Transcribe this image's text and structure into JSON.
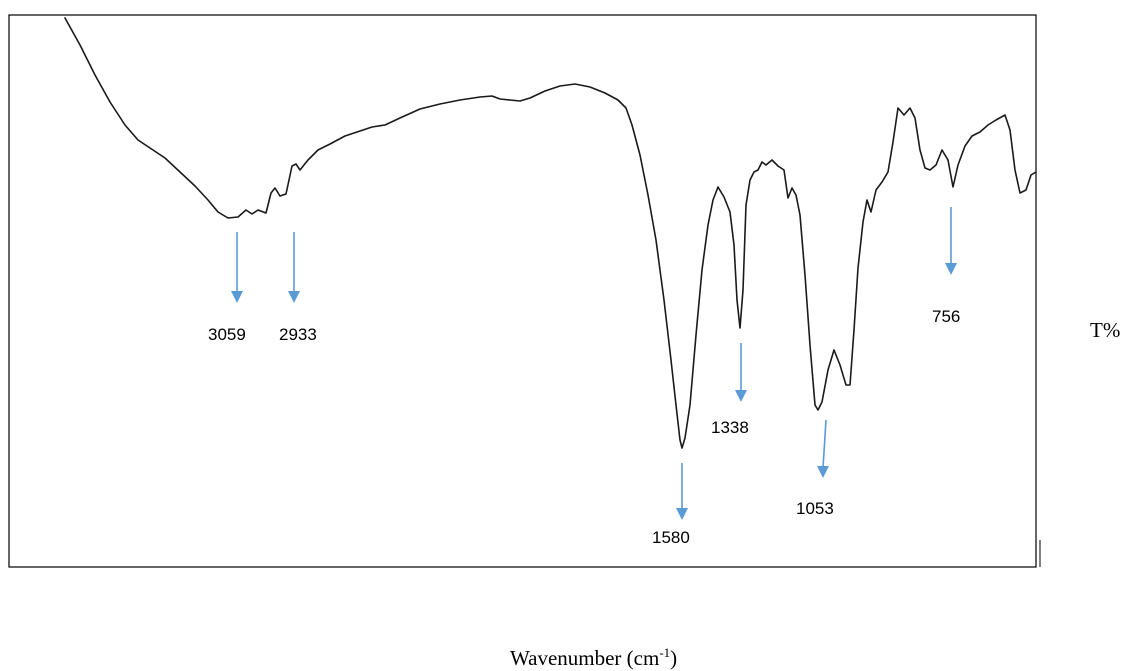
{
  "chart_data": {
    "type": "line",
    "title": "",
    "xlabel": "Wavenumber (cm",
    "xlabel_superscript": "-1",
    "xlabel_close": ")",
    "ylabel": "T%",
    "legend": "none",
    "grid": false,
    "peaks": [
      {
        "label": "3059",
        "x": 3059
      },
      {
        "label": "2933",
        "x": 2933
      },
      {
        "label": "1580",
        "x": 1580
      },
      {
        "label": "1338",
        "x": 1338
      },
      {
        "label": "1053",
        "x": 1053
      },
      {
        "label": "756",
        "x": 756
      }
    ]
  }
}
